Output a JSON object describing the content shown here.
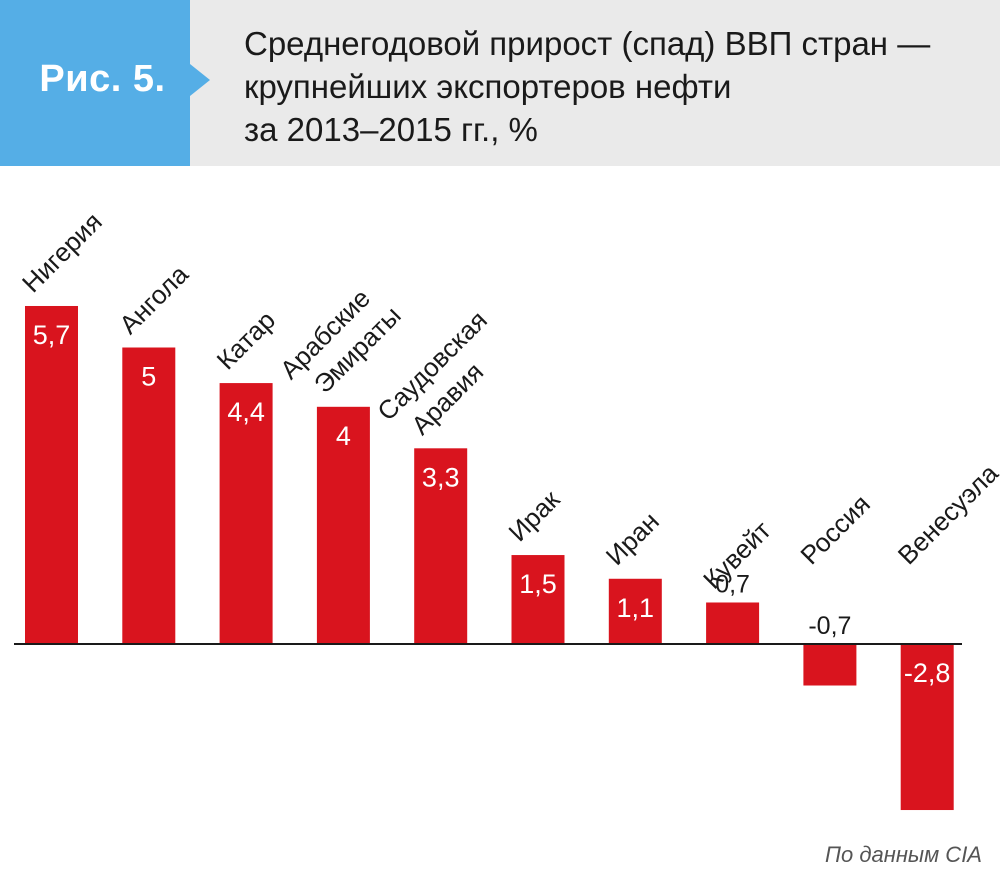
{
  "figure_label": "Рис. 5.",
  "title_lines": [
    "Среднегодовой прирост (спад) ВВП стран —",
    "крупнейших экспортеров нефти",
    "за 2013–2015 гг., %"
  ],
  "source": "По данным CIA",
  "colors": {
    "bar": "#d9141e",
    "label_blue": "#55aee6",
    "header_bg": "#eaeaea"
  },
  "chart_data": {
    "type": "bar",
    "title": "Среднегодовой прирост (спад) ВВП стран — крупнейших экспортеров нефти за 2013–2015 гг., %",
    "categories": [
      [
        "Нигерия"
      ],
      [
        "Ангола"
      ],
      [
        "Катар"
      ],
      [
        "Арабские",
        "Эмираты"
      ],
      [
        "Саудовская",
        "Аравия"
      ],
      [
        "Ирак"
      ],
      [
        "Иран"
      ],
      [
        "Кувейт"
      ],
      [
        "Россия"
      ],
      [
        "Венесуэла"
      ]
    ],
    "values": [
      5.7,
      5,
      4.4,
      4,
      3.3,
      1.5,
      1.1,
      0.7,
      -0.7,
      -2.8
    ],
    "value_labels": [
      "5,7",
      "5",
      "4,4",
      "4",
      "3,3",
      "1,5",
      "1,1",
      "0,7",
      "-0,7",
      "-2,8"
    ],
    "ylim": [
      -2.8,
      5.7
    ],
    "grid": false,
    "legend": "none"
  }
}
